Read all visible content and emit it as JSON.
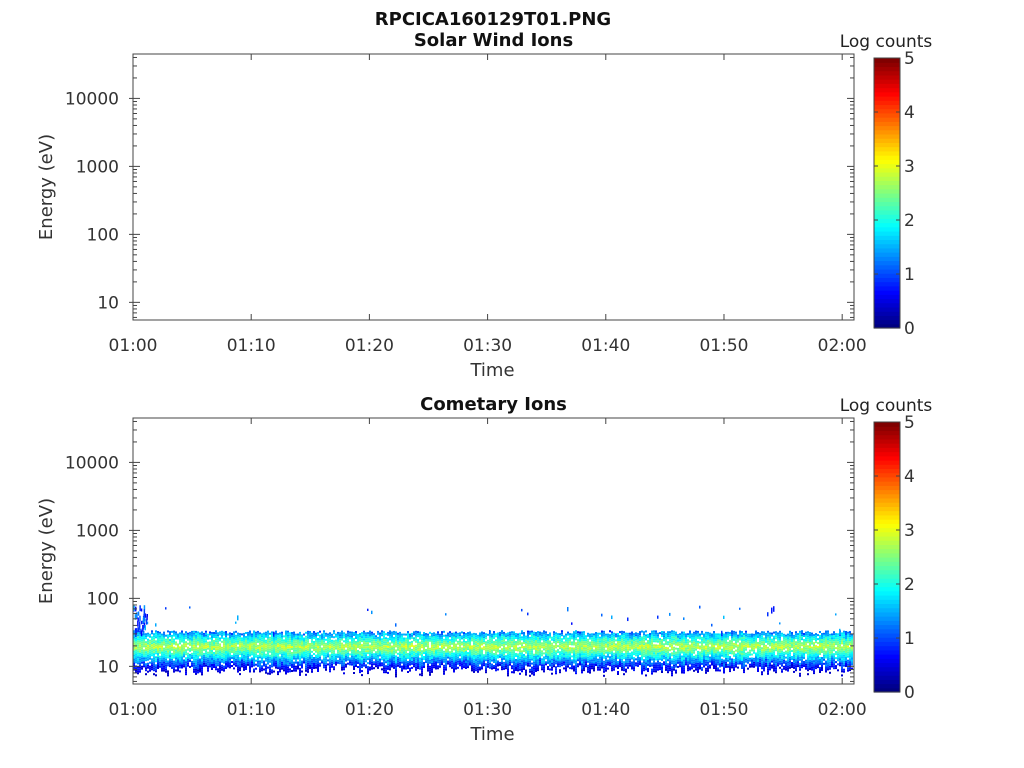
{
  "figure_title": "RPCICA160129T01.PNG",
  "chart_data": [
    {
      "type": "heatmap",
      "title": "Solar Wind Ions",
      "xlabel": "Time",
      "ylabel": "Energy (eV)",
      "x_tick_labels": [
        "01:00",
        "01:10",
        "01:20",
        "01:30",
        "01:40",
        "01:50",
        "02:00"
      ],
      "x_range_minutes": [
        0,
        61
      ],
      "y_scale": "log",
      "y_tick_values": [
        10,
        100,
        1000,
        10000
      ],
      "y_tick_labels": [
        "10",
        "100",
        "1000",
        "10000"
      ],
      "ylim": [
        5.5,
        45000
      ],
      "colorbar_label": "Log counts",
      "colorbar_ticks": [
        "0",
        "1",
        "2",
        "3",
        "4",
        "5"
      ],
      "colorbar_range": [
        0,
        5
      ],
      "colormap": "jet",
      "band": null
    },
    {
      "type": "heatmap",
      "title": "Cometary Ions",
      "xlabel": "Time",
      "ylabel": "Energy (eV)",
      "x_tick_labels": [
        "01:00",
        "01:10",
        "01:20",
        "01:30",
        "01:40",
        "01:50",
        "02:00"
      ],
      "x_range_minutes": [
        0,
        61
      ],
      "y_scale": "log",
      "y_tick_values": [
        10,
        100,
        1000,
        10000
      ],
      "y_tick_labels": [
        "10",
        "100",
        "1000",
        "10000"
      ],
      "ylim": [
        5.5,
        45000
      ],
      "colorbar_label": "Log counts",
      "colorbar_ticks": [
        "0",
        "1",
        "2",
        "3",
        "4",
        "5"
      ],
      "colorbar_range": [
        0,
        5
      ],
      "colormap": "jet",
      "band": {
        "time_range_minutes": [
          0,
          61
        ],
        "energy_low_eV": 9,
        "energy_high_eV": 32,
        "energy_peak_eV": 20,
        "peak_log_counts": 2.8,
        "sporadic_max_energy_eV": 80
      }
    }
  ]
}
